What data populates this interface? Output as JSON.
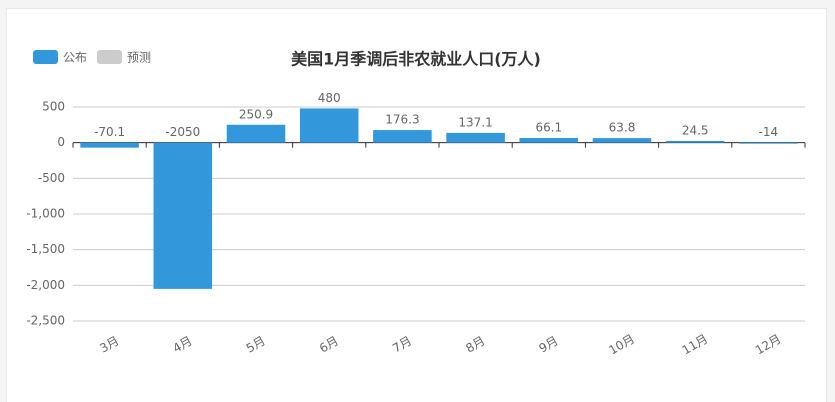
{
  "chart_data": {
    "type": "bar",
    "title": "美国1月季调后非农就业人口(万人)",
    "categories": [
      "3月",
      "4月",
      "5月",
      "6月",
      "7月",
      "8月",
      "9月",
      "10月",
      "11月",
      "12月"
    ],
    "series": [
      {
        "name": "公布",
        "color": "#3398db",
        "values": [
          -70.1,
          -2050,
          250.9,
          480,
          176.3,
          137.1,
          66.1,
          63.8,
          24.5,
          -14
        ]
      },
      {
        "name": "预测",
        "color": "#cccccc",
        "values": [
          null,
          null,
          null,
          null,
          null,
          null,
          null,
          null,
          null,
          null
        ]
      }
    ],
    "ylim": [
      -2500,
      500
    ],
    "yticks": [
      500,
      0,
      {
        "value": -500,
        "label": "-500"
      },
      {
        "value": -1000,
        "label": "-1,000"
      },
      {
        "value": -1500,
        "label": "-1,500"
      },
      {
        "value": -2000,
        "label": "-2,000"
      },
      {
        "value": -2500,
        "label": "-2,500"
      }
    ],
    "grid": true,
    "legend": "top-left"
  }
}
